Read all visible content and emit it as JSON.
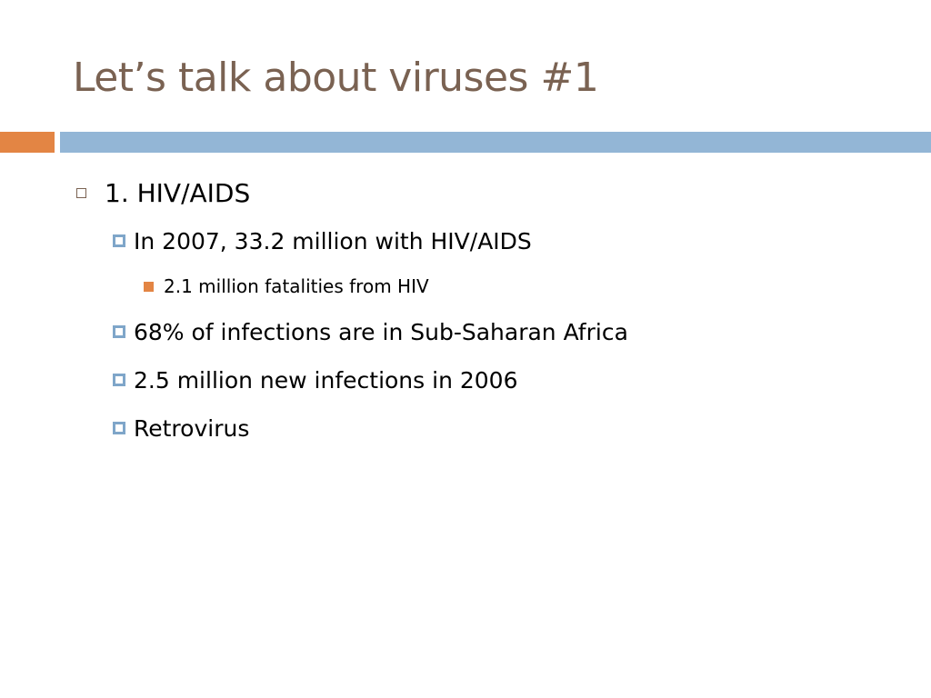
{
  "slide": {
    "title": "Let’s talk about viruses #1",
    "colors": {
      "title": "#7a6252",
      "accent_orange": "#e38544",
      "accent_blue": "#93b6d6",
      "bullet_blue": "#7fa6c9"
    },
    "bullets": [
      {
        "level": 1,
        "text": "1. HIV/AIDS",
        "bullet_icon": "hollow-square-icon"
      },
      {
        "level": 2,
        "text": "In 2007, 33.2 million with HIV/AIDS",
        "bullet_icon": "blue-square-bullet-icon"
      },
      {
        "level": 3,
        "text": "2.1 million fatalities from HIV",
        "bullet_icon": "orange-square-bullet-icon"
      },
      {
        "level": 2,
        "text": "68% of infections are in Sub-Saharan Africa",
        "bullet_icon": "blue-square-bullet-icon"
      },
      {
        "level": 2,
        "text": "2.5 million new infections in 2006",
        "bullet_icon": "blue-square-bullet-icon"
      },
      {
        "level": 2,
        "text": "Retrovirus",
        "bullet_icon": "blue-square-bullet-icon"
      }
    ]
  }
}
